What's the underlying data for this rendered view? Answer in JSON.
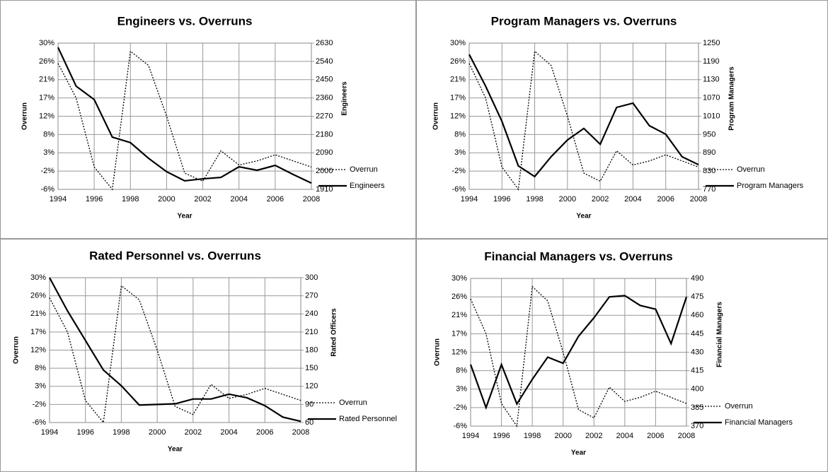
{
  "chart_data": [
    {
      "type": "line",
      "title": "Engineers vs. Overruns",
      "xlabel": "Year",
      "ylabel": "Overrun",
      "y2label": "Engineers",
      "x": [
        1994,
        1995,
        1996,
        1997,
        1998,
        1999,
        2000,
        2001,
        2002,
        2003,
        2004,
        2005,
        2006,
        2007,
        2008
      ],
      "xlim": [
        1994,
        2008
      ],
      "xticks": [
        1994,
        1996,
        1998,
        2000,
        2002,
        2004,
        2006,
        2008
      ],
      "ylim": [
        -6,
        30
      ],
      "yticks": [
        {
          "value": -6,
          "label": "-6%"
        },
        {
          "value": -1.5,
          "label": "-2%"
        },
        {
          "value": 3,
          "label": "3%"
        },
        {
          "value": 7.5,
          "label": "8%"
        },
        {
          "value": 12,
          "label": "12%"
        },
        {
          "value": 16.5,
          "label": "17%"
        },
        {
          "value": 21,
          "label": "21%"
        },
        {
          "value": 25.5,
          "label": "26%"
        },
        {
          "value": 30,
          "label": "30%"
        }
      ],
      "y2lim": [
        1910,
        2630
      ],
      "y2ticks": [
        1910,
        2000,
        2090,
        2180,
        2270,
        2360,
        2450,
        2540,
        2630
      ],
      "grid": true,
      "legend": "right",
      "series": [
        {
          "name": "Overrun",
          "color": "#000000",
          "line_style": "dotted",
          "axis": "y",
          "values": [
            25,
            16.5,
            -0.5,
            -6,
            28,
            24.5,
            12,
            -2,
            -4,
            3.5,
            0,
            1,
            2.5,
            1,
            -0.5
          ]
        },
        {
          "name": "Engineers",
          "color": "#000000",
          "line_style": "solid",
          "axis": "y2",
          "values": [
            2609,
            2418,
            2352,
            2167,
            2140,
            2063,
            1997,
            1952,
            1962,
            1969,
            2021,
            2004,
            2028,
            1983,
            1941
          ]
        }
      ]
    },
    {
      "type": "line",
      "title": "Program Managers vs. Overruns",
      "xlabel": "Year",
      "ylabel": "Overrun",
      "y2label": "Program Managers",
      "x": [
        1994,
        1995,
        1996,
        1997,
        1998,
        1999,
        2000,
        2001,
        2002,
        2003,
        2004,
        2005,
        2006,
        2007,
        2008
      ],
      "xlim": [
        1994,
        2008
      ],
      "xticks": [
        1994,
        1996,
        1998,
        2000,
        2002,
        2004,
        2006,
        2008
      ],
      "ylim": [
        -6,
        30
      ],
      "yticks": [
        {
          "value": -6,
          "label": "-6%"
        },
        {
          "value": -1.5,
          "label": "-2%"
        },
        {
          "value": 3,
          "label": "3%"
        },
        {
          "value": 7.5,
          "label": "8%"
        },
        {
          "value": 12,
          "label": "12%"
        },
        {
          "value": 16.5,
          "label": "17%"
        },
        {
          "value": 21,
          "label": "21%"
        },
        {
          "value": 25.5,
          "label": "26%"
        },
        {
          "value": 30,
          "label": "30%"
        }
      ],
      "y2lim": [
        770,
        1250
      ],
      "y2ticks": [
        770,
        830,
        890,
        950,
        1010,
        1070,
        1130,
        1190,
        1250
      ],
      "grid": true,
      "legend": "right",
      "series": [
        {
          "name": "Overrun",
          "color": "#000000",
          "line_style": "dotted",
          "axis": "y",
          "values": [
            25,
            16.5,
            -0.5,
            -6,
            28,
            24.5,
            12,
            -2,
            -4,
            3.5,
            0,
            1,
            2.5,
            1,
            -0.5
          ]
        },
        {
          "name": "Program Managers",
          "color": "#000000",
          "line_style": "solid",
          "axis": "y2",
          "values": [
            1213,
            1109,
            993,
            847,
            812,
            877,
            932,
            970,
            918,
            1039,
            1053,
            979,
            951,
            877,
            851
          ]
        }
      ]
    },
    {
      "type": "line",
      "title": "Rated Personnel vs. Overruns",
      "xlabel": "Year",
      "ylabel": "Overrun",
      "y2label": "Rated Officers",
      "x": [
        1994,
        1995,
        1996,
        1997,
        1998,
        1999,
        2000,
        2001,
        2002,
        2003,
        2004,
        2005,
        2006,
        2007,
        2008
      ],
      "xlim": [
        1994,
        2008
      ],
      "xticks": [
        1994,
        1996,
        1998,
        2000,
        2002,
        2004,
        2006,
        2008
      ],
      "ylim": [
        -6,
        30
      ],
      "yticks": [
        {
          "value": -6,
          "label": "-6%"
        },
        {
          "value": -1.5,
          "label": "-2%"
        },
        {
          "value": 3,
          "label": "3%"
        },
        {
          "value": 7.5,
          "label": "8%"
        },
        {
          "value": 12,
          "label": "12%"
        },
        {
          "value": 16.5,
          "label": "17%"
        },
        {
          "value": 21,
          "label": "21%"
        },
        {
          "value": 25.5,
          "label": "26%"
        },
        {
          "value": 30,
          "label": "30%"
        }
      ],
      "y2lim": [
        60,
        300
      ],
      "y2ticks": [
        60,
        90,
        120,
        150,
        180,
        210,
        240,
        270,
        300
      ],
      "grid": true,
      "legend": "right",
      "series": [
        {
          "name": "Overrun",
          "color": "#000000",
          "line_style": "dotted",
          "axis": "y",
          "values": [
            25,
            16.5,
            -0.5,
            -6,
            28,
            24.5,
            12,
            -2,
            -4,
            3.5,
            0,
            1,
            2.5,
            1,
            -0.5
          ]
        },
        {
          "name": "Rated Personnel",
          "color": "#000000",
          "line_style": "solid",
          "axis": "y2",
          "values": [
            300,
            245,
            196,
            147,
            121,
            89,
            90,
            91,
            99,
            99,
            107,
            101,
            88,
            69,
            62
          ]
        }
      ]
    },
    {
      "type": "line",
      "title": "Financial Managers vs. Overruns",
      "xlabel": "Year",
      "ylabel": "Overrun",
      "y2label": "Financial Managers",
      "x": [
        1994,
        1995,
        1996,
        1997,
        1998,
        1999,
        2000,
        2001,
        2002,
        2003,
        2004,
        2005,
        2006,
        2007,
        2008
      ],
      "xlim": [
        1994,
        2008
      ],
      "xticks": [
        1994,
        1996,
        1998,
        2000,
        2002,
        2004,
        2006,
        2008
      ],
      "ylim": [
        -6,
        30
      ],
      "yticks": [
        {
          "value": -6,
          "label": "-6%"
        },
        {
          "value": -1.5,
          "label": "-2%"
        },
        {
          "value": 3,
          "label": "3%"
        },
        {
          "value": 7.5,
          "label": "8%"
        },
        {
          "value": 12,
          "label": "12%"
        },
        {
          "value": 16.5,
          "label": "17%"
        },
        {
          "value": 21,
          "label": "21%"
        },
        {
          "value": 25.5,
          "label": "26%"
        },
        {
          "value": 30,
          "label": "30%"
        }
      ],
      "y2lim": [
        370,
        490
      ],
      "y2ticks": [
        370,
        385,
        400,
        415,
        430,
        445,
        460,
        475,
        490
      ],
      "grid": true,
      "legend": "right",
      "series": [
        {
          "name": "Overrun",
          "color": "#000000",
          "line_style": "dotted",
          "axis": "y",
          "values": [
            25,
            16.5,
            -0.5,
            -6,
            28,
            24.5,
            12,
            -2,
            -4,
            3.5,
            0,
            1,
            2.5,
            1,
            -0.5
          ]
        },
        {
          "name": "Financial Managers",
          "color": "#000000",
          "line_style": "solid",
          "axis": "y2",
          "values": [
            420,
            385,
            420,
            388,
            408,
            426,
            421,
            443,
            458,
            475,
            476,
            468,
            465,
            437,
            475
          ]
        }
      ]
    }
  ]
}
